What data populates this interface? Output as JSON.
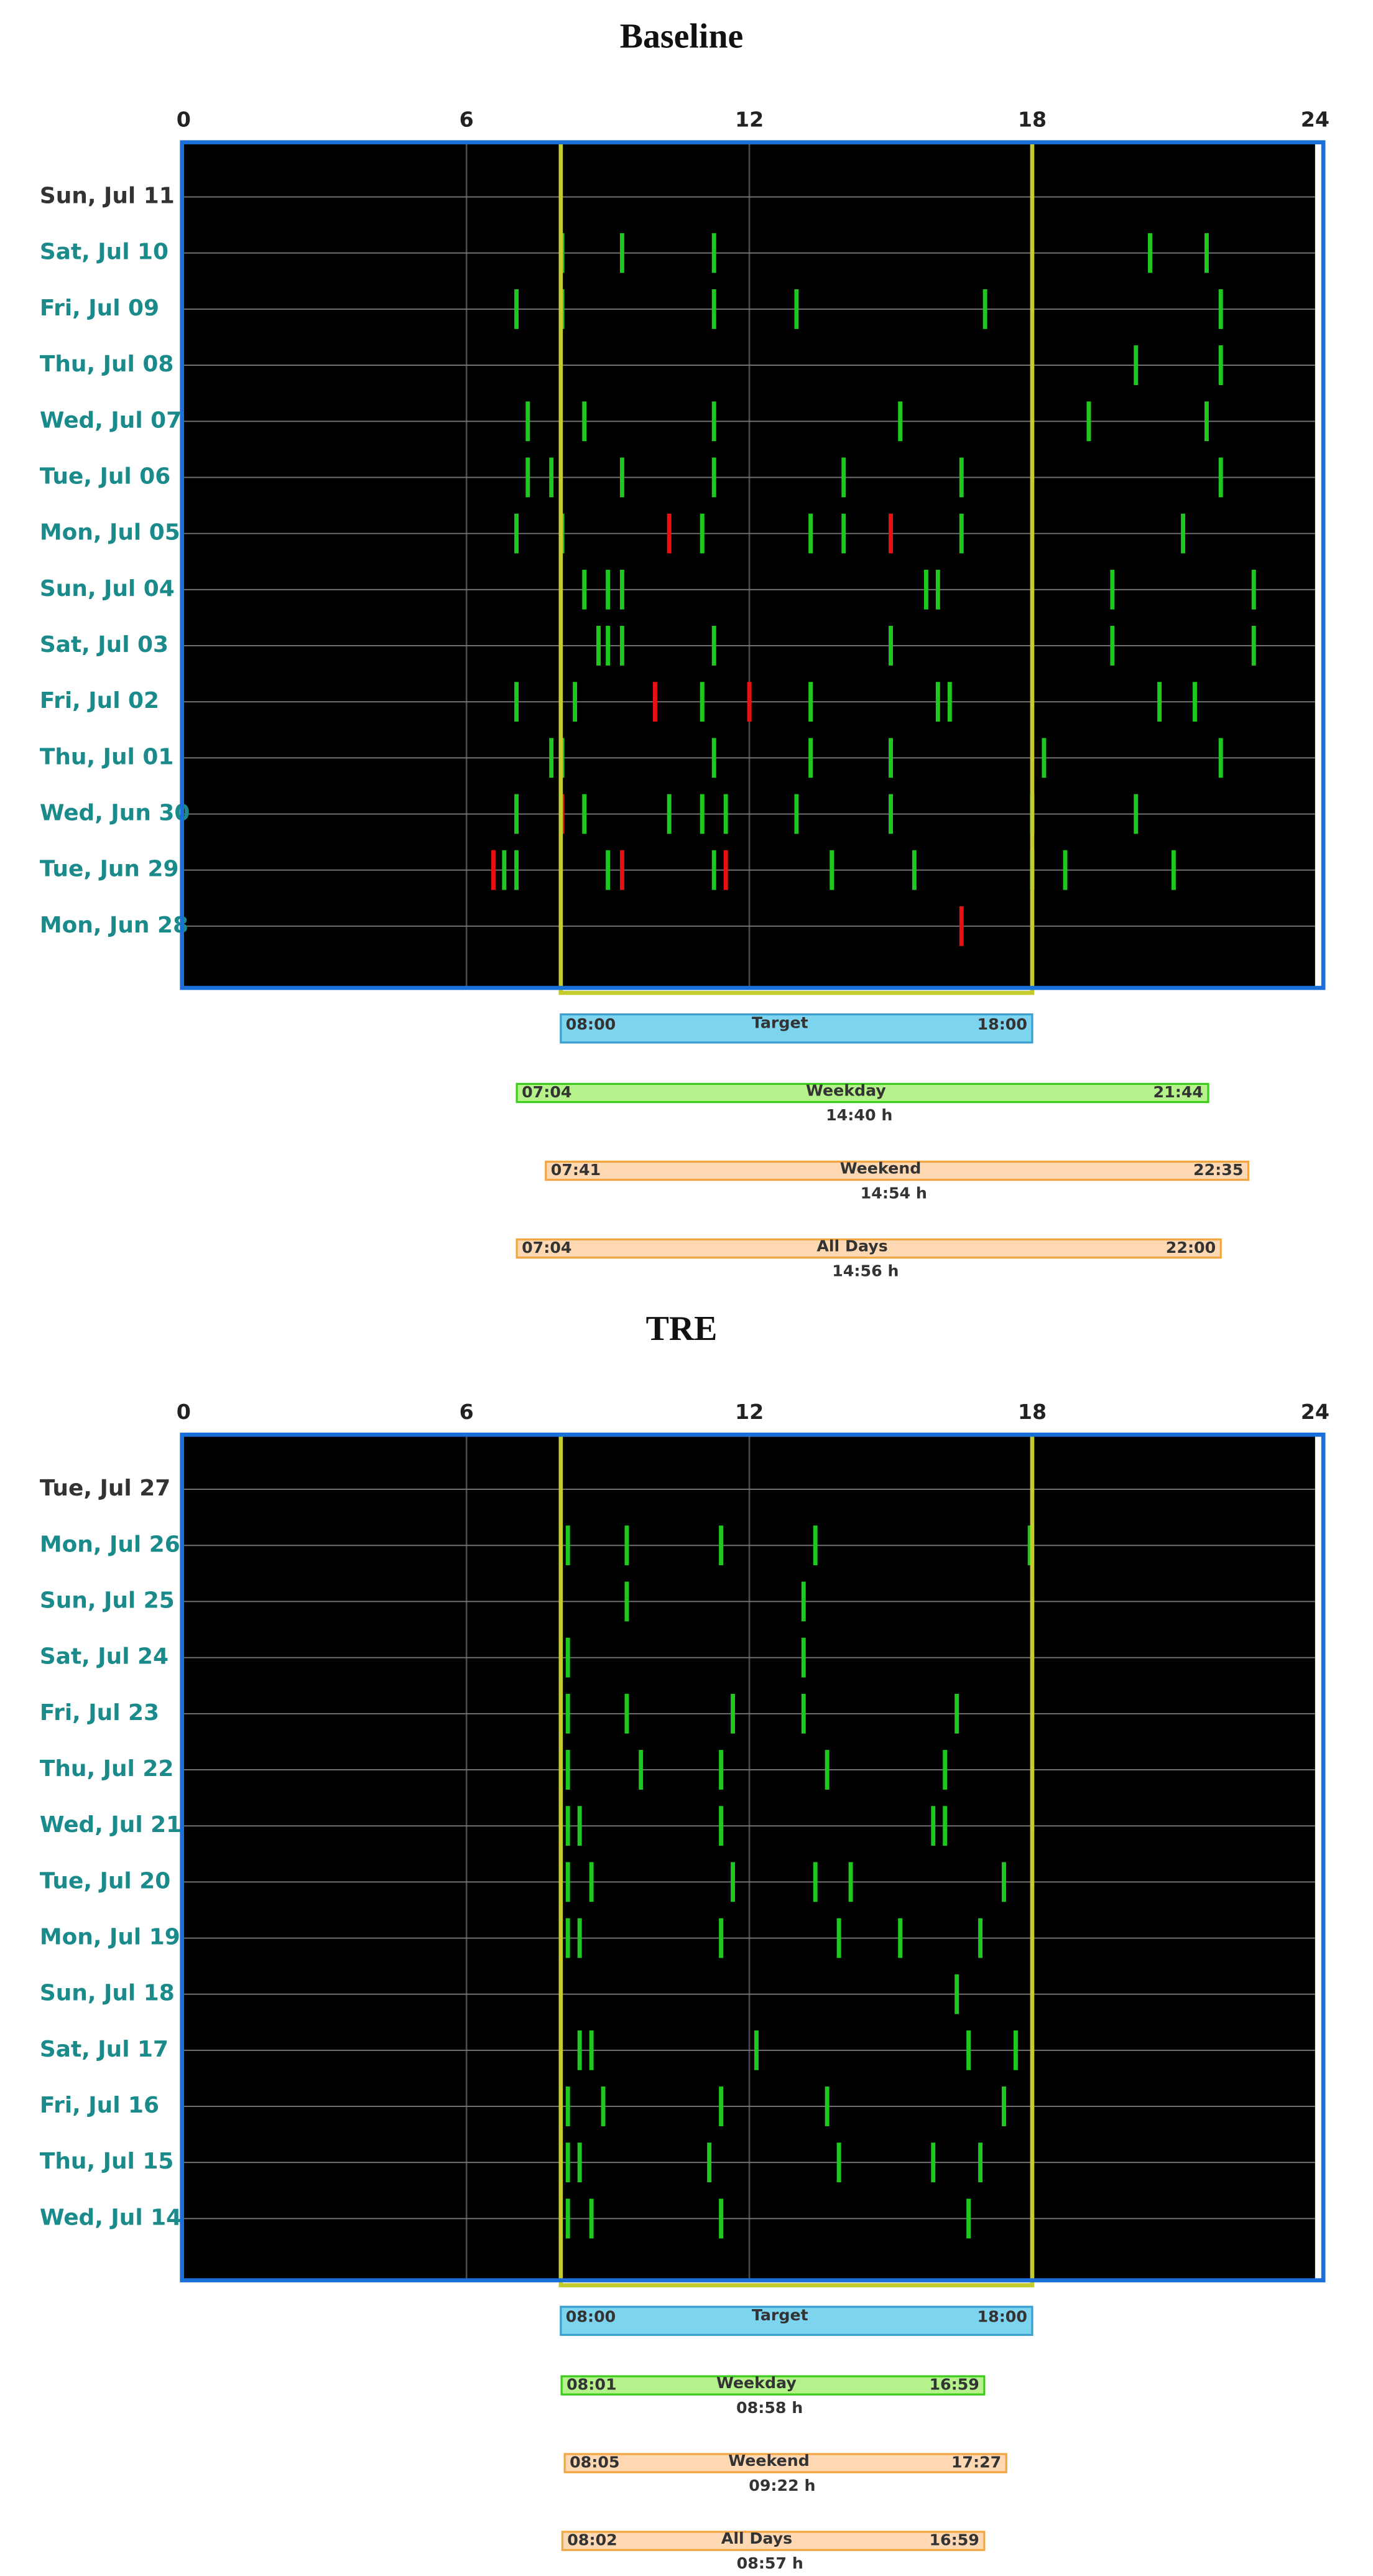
{
  "chart_data": [
    {
      "type": "timeline",
      "title": "Baseline",
      "xlim": [
        0,
        24
      ],
      "xticks": [
        0,
        6,
        12,
        18,
        24
      ],
      "grid": true,
      "categories": [
        "Sun, Jul 11",
        "Sat, Jul 10",
        "Fri, Jul 09",
        "Thu, Jul 08",
        "Wed, Jul 07",
        "Tue, Jul 06",
        "Mon, Jul 05",
        "Sun, Jul 04",
        "Sat, Jul 03",
        "Fri, Jul 02",
        "Thu, Jul 01",
        "Wed, Jun 30",
        "Tue, Jun 29",
        "Mon, Jun 28"
      ],
      "label_color": "#1b8a8a",
      "current_label_color": "#333333",
      "event_color": "#1ec81e",
      "flagged_color": "#e81010",
      "events": [
        [],
        [
          8.03,
          9.3,
          11.25,
          20.5,
          21.7
        ],
        [
          7.06,
          8.03,
          11.25,
          13.0,
          17.0,
          22.0
        ],
        [
          20.2,
          22.0
        ],
        [
          7.3,
          8.5,
          11.25,
          15.2,
          19.2,
          21.7
        ],
        [
          7.3,
          7.8,
          9.3,
          11.25,
          14.0,
          16.5,
          22.0
        ],
        [
          7.06,
          8.03,
          11.0,
          13.3,
          14.0,
          16.5,
          21.2
        ],
        [
          8.5,
          9.0,
          9.3,
          15.75,
          16.0,
          19.7,
          22.7
        ],
        [
          8.8,
          9.0,
          9.3,
          11.25,
          15.0,
          19.7,
          22.7
        ],
        [
          7.06,
          8.3,
          11.0,
          13.3,
          16.0,
          16.25,
          20.7,
          21.45
        ],
        [
          7.8,
          8.03,
          11.25,
          13.3,
          15.0,
          18.25,
          22.0
        ],
        [
          7.06,
          8.5,
          10.3,
          11.0,
          11.5,
          13.0,
          15.0,
          18.0,
          20.2
        ],
        [
          6.8,
          7.06,
          9.0,
          11.25,
          13.75,
          15.5,
          18.0,
          18.7,
          21.0
        ],
        []
      ],
      "flagged_events": [
        [],
        [],
        [],
        [],
        [],
        [],
        [
          10.3,
          15.0
        ],
        [],
        [],
        [
          10.0,
          12.0
        ],
        [],
        [
          8.03
        ],
        [
          6.57,
          9.3,
          11.5
        ],
        [
          16.5
        ]
      ],
      "target": {
        "start": 8,
        "end": 18,
        "color": "#c3cc2c"
      },
      "windows": [
        {
          "name": "Target",
          "start": {
            "value": 8,
            "label": "08:00"
          },
          "end": {
            "value": 18,
            "label": "18:00"
          },
          "fill": "#7dd4ef",
          "stroke": "#3a9fd0"
        },
        {
          "name": "Weekday",
          "start": {
            "value": 7.067,
            "label": "07:04"
          },
          "end": {
            "value": 21.733,
            "label": "21:44"
          },
          "fill": "#b6f28c",
          "stroke": "#3ccd1c",
          "duration": "14:40 h"
        },
        {
          "name": "Weekend",
          "start": {
            "value": 7.683,
            "label": "07:41"
          },
          "end": {
            "value": 22.583,
            "label": "22:35"
          },
          "fill": "#fdd8b3",
          "stroke": "#f3a640",
          "duration": "14:54 h"
        },
        {
          "name": "All Days",
          "start": {
            "value": 7.067,
            "label": "07:04"
          },
          "end": {
            "value": 22,
            "label": "22:00"
          },
          "fill": "#fdd8b3",
          "stroke": "#f3a640",
          "duration": "14:56 h"
        }
      ]
    },
    {
      "type": "timeline",
      "title": "TRE",
      "xlim": [
        0,
        24
      ],
      "xticks": [
        0,
        6,
        12,
        18,
        24
      ],
      "grid": true,
      "categories": [
        "Tue, Jul 27",
        "Mon, Jul 26",
        "Sun, Jul 25",
        "Sat, Jul 24",
        "Fri, Jul 23",
        "Thu, Jul 22",
        "Wed, Jul 21",
        "Tue, Jul 20",
        "Mon, Jul 19",
        "Sun, Jul 18",
        "Sat, Jul 17",
        "Fri, Jul 16",
        "Thu, Jul 15",
        "Wed, Jul 14"
      ],
      "label_color": "#1b8a8a",
      "current_label_color": "#333333",
      "event_color": "#1ec81e",
      "flagged_color": "#e81010",
      "events": [
        [],
        [
          8.15,
          9.4,
          11.4,
          13.4,
          17.95
        ],
        [
          9.4,
          13.15
        ],
        [
          8.15,
          13.15
        ],
        [
          8.15,
          9.4,
          11.65,
          13.15,
          16.4
        ],
        [
          8.15,
          9.7,
          11.4,
          13.65,
          16.15
        ],
        [
          8.15,
          8.4,
          11.4,
          15.9,
          16.15
        ],
        [
          8.15,
          8.65,
          11.65,
          13.4,
          14.15,
          17.4
        ],
        [
          8.15,
          8.4,
          11.4,
          13.9,
          15.2,
          16.9
        ],
        [
          16.4
        ],
        [
          8.4,
          8.65,
          12.15,
          16.65,
          17.65
        ],
        [
          8.15,
          8.9,
          11.4,
          13.65,
          17.4
        ],
        [
          8.15,
          8.4,
          11.15,
          13.9,
          15.9,
          16.9
        ],
        [
          8.15,
          8.65,
          11.4,
          16.65
        ]
      ],
      "flagged_events": [
        [],
        [],
        [],
        [],
        [],
        [],
        [],
        [],
        [],
        [],
        [],
        [],
        [],
        []
      ],
      "target": {
        "start": 8,
        "end": 18,
        "color": "#c3cc2c"
      },
      "windows": [
        {
          "name": "Target",
          "start": {
            "value": 8,
            "label": "08:00"
          },
          "end": {
            "value": 18,
            "label": "18:00"
          },
          "fill": "#7dd4ef",
          "stroke": "#3a9fd0"
        },
        {
          "name": "Weekday",
          "start": {
            "value": 8.017,
            "label": "08:01"
          },
          "end": {
            "value": 16.983,
            "label": "16:59"
          },
          "fill": "#b6f28c",
          "stroke": "#3ccd1c",
          "duration": "08:58 h"
        },
        {
          "name": "Weekend",
          "start": {
            "value": 8.083,
            "label": "08:05"
          },
          "end": {
            "value": 17.45,
            "label": "17:27"
          },
          "fill": "#fdd8b3",
          "stroke": "#f3a640",
          "duration": "09:22 h"
        },
        {
          "name": "All Days",
          "start": {
            "value": 8.033,
            "label": "08:02"
          },
          "end": {
            "value": 16.983,
            "label": "16:59"
          },
          "fill": "#fdd8b3",
          "stroke": "#f3a640",
          "duration": "08:57 h"
        }
      ]
    }
  ]
}
